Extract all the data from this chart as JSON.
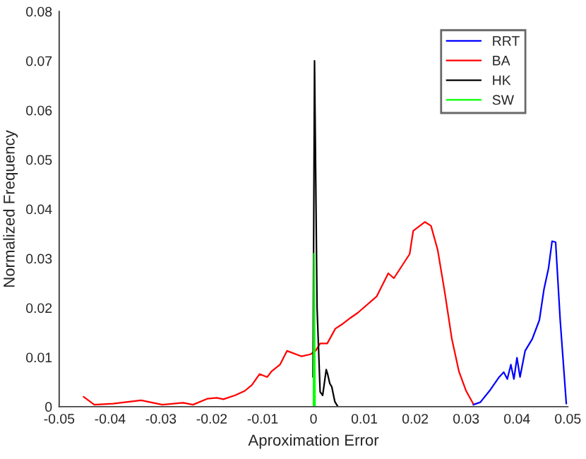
{
  "chart_data": {
    "type": "line",
    "xlabel": "Aproximation Error",
    "ylabel": "Normalized Frequency",
    "xlim": [
      -0.05,
      0.05
    ],
    "xticks": [
      -0.05,
      -0.04,
      -0.03,
      -0.02,
      -0.01,
      0,
      0.01,
      0.02,
      0.03,
      0.04,
      0.05
    ],
    "ylim": [
      0,
      0.08
    ],
    "yticks": [
      0,
      0.01,
      0.02,
      0.03,
      0.04,
      0.05,
      0.06,
      0.07,
      0.08
    ],
    "grid": false,
    "legend": "top right",
    "marker": "none",
    "line_style": "solid",
    "series": [
      {
        "name": "RRT",
        "color": "#0000ff",
        "x": [
          0.0314,
          0.0328,
          0.0346,
          0.0365,
          0.0374,
          0.0381,
          0.0388,
          0.0394,
          0.04,
          0.0406,
          0.0416,
          0.043,
          0.0444,
          0.0453,
          0.0462,
          0.0469,
          0.0476,
          0.0485,
          0.0497
        ],
        "values": [
          0.0004,
          0.0009,
          0.0032,
          0.006,
          0.007,
          0.0056,
          0.0085,
          0.0056,
          0.0099,
          0.006,
          0.0113,
          0.0137,
          0.0175,
          0.0237,
          0.028,
          0.0335,
          0.0333,
          0.0175,
          0.0006
        ]
      },
      {
        "name": "BA",
        "color": "#ff0000",
        "x": [
          -0.0452,
          -0.0431,
          -0.0394,
          -0.0339,
          -0.0297,
          -0.0256,
          -0.0237,
          -0.0209,
          -0.019,
          -0.0177,
          -0.0154,
          -0.0135,
          -0.0121,
          -0.0106,
          -0.0091,
          -0.0082,
          -0.0066,
          -0.0052,
          -0.0024,
          -0.0006,
          0.0004,
          0.0013,
          0.0027,
          0.0043,
          0.0055,
          0.0073,
          0.0087,
          0.0124,
          0.0147,
          0.0158,
          0.0189,
          0.0196,
          0.0219,
          0.0231,
          0.0244,
          0.0258,
          0.0272,
          0.0286,
          0.03,
          0.0314
        ],
        "values": [
          0.002,
          0.0004,
          0.0006,
          0.0013,
          0.0004,
          0.0008,
          0.0004,
          0.0016,
          0.0018,
          0.0015,
          0.0023,
          0.0032,
          0.0044,
          0.0066,
          0.006,
          0.0072,
          0.0085,
          0.0113,
          0.0102,
          0.0106,
          0.0113,
          0.0128,
          0.0128,
          0.0158,
          0.0166,
          0.018,
          0.019,
          0.0223,
          0.027,
          0.026,
          0.0309,
          0.0356,
          0.0374,
          0.0366,
          0.0318,
          0.0232,
          0.0137,
          0.0071,
          0.0032,
          0.0006
        ]
      },
      {
        "name": "HK",
        "color": "#000000",
        "x": [
          -0.0001,
          0.0002,
          0.0007,
          0.0013,
          0.0018,
          0.0025,
          0.0028,
          0.0032,
          0.0036,
          0.0042,
          0.0048
        ],
        "values": [
          0.006,
          0.07,
          0.02,
          0.003,
          0.0023,
          0.0075,
          0.0065,
          0.0047,
          0.004,
          0.001,
          0.0
        ]
      },
      {
        "name": "SW",
        "color": "#00ff00",
        "x": [
          0.0,
          0.0001,
          0.0003
        ],
        "values": [
          0.0,
          0.031,
          0.0
        ]
      }
    ]
  }
}
